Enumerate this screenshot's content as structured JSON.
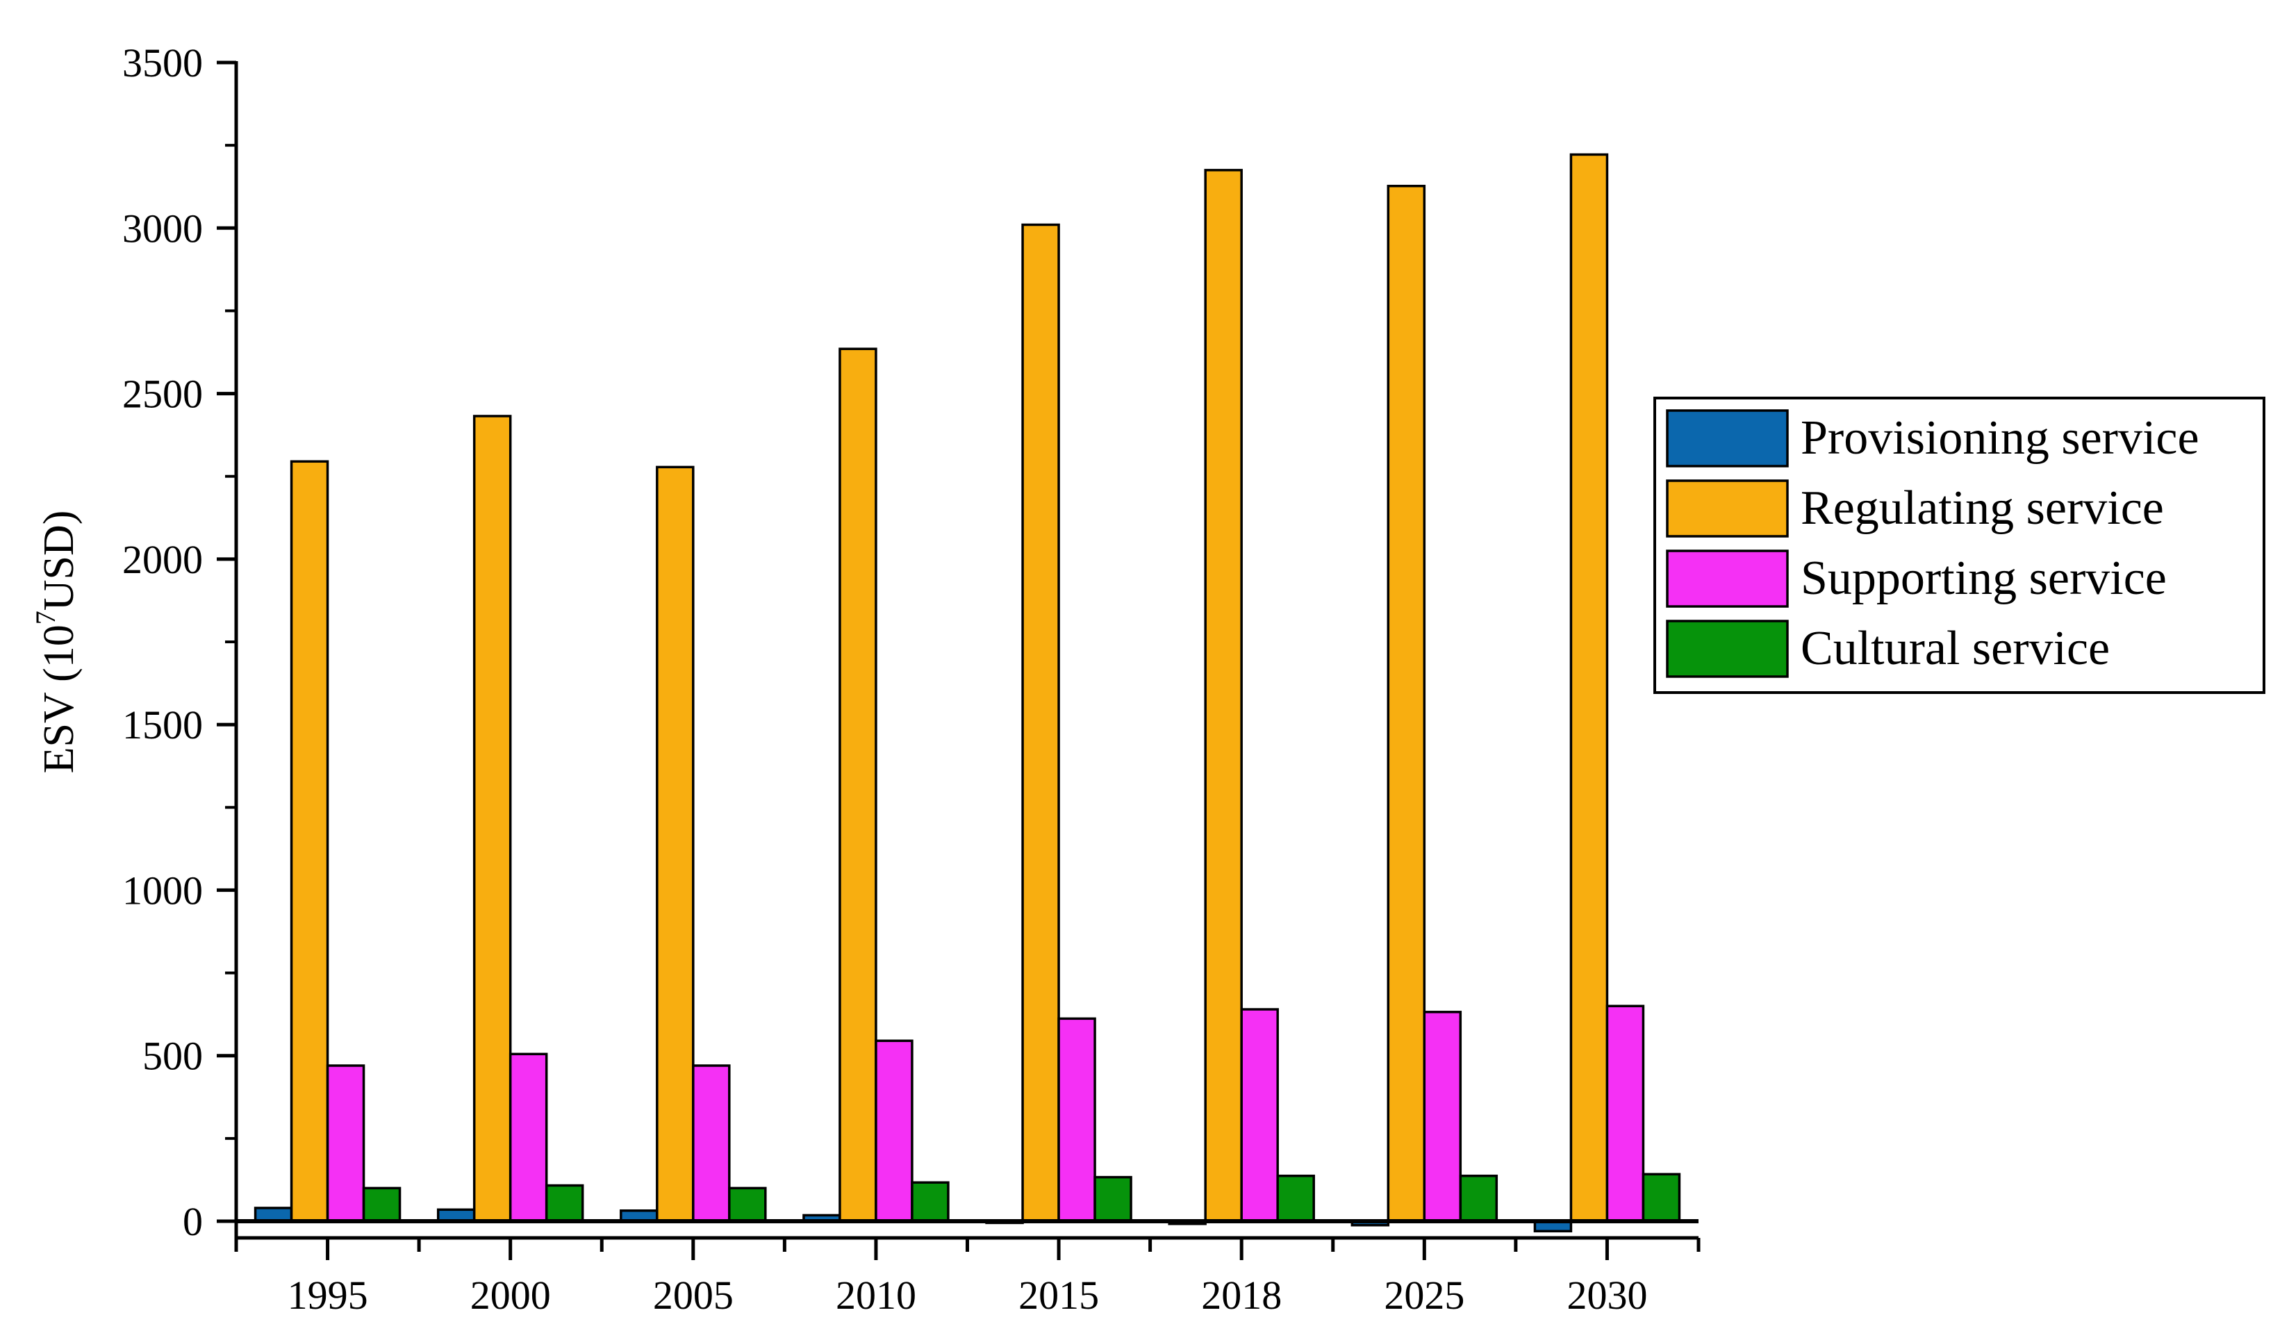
{
  "chart_data": {
    "type": "bar",
    "title": "",
    "xlabel": "",
    "ylabel": "ESV (10",
    "ylabel_superscript": "7",
    "ylabel_suffix": "USD)",
    "categories": [
      "1995",
      "2000",
      "2005",
      "2010",
      "2015",
      "2018",
      "2025",
      "2030"
    ],
    "series": [
      {
        "name": "Provisioning service",
        "color": "#0b67ad",
        "values": [
          40,
          35,
          32,
          18,
          -5,
          -8,
          -12,
          -30
        ]
      },
      {
        "name": "Regulating service",
        "color": "#f8ae10",
        "values": [
          2295,
          2432,
          2278,
          2635,
          3010,
          3175,
          3127,
          3222
        ]
      },
      {
        "name": "Supporting service",
        "color": "#f530f5",
        "values": [
          470,
          505,
          470,
          545,
          612,
          640,
          632,
          650
        ]
      },
      {
        "name": "Cultural service",
        "color": "#06930b",
        "values": [
          100,
          108,
          100,
          117,
          133,
          137,
          137,
          142
        ]
      }
    ],
    "ylim": [
      -50,
      3500
    ],
    "yticks": [
      0,
      500,
      1000,
      1500,
      2000,
      2500,
      3000,
      3500
    ],
    "grid": false,
    "legend_position": "right"
  }
}
